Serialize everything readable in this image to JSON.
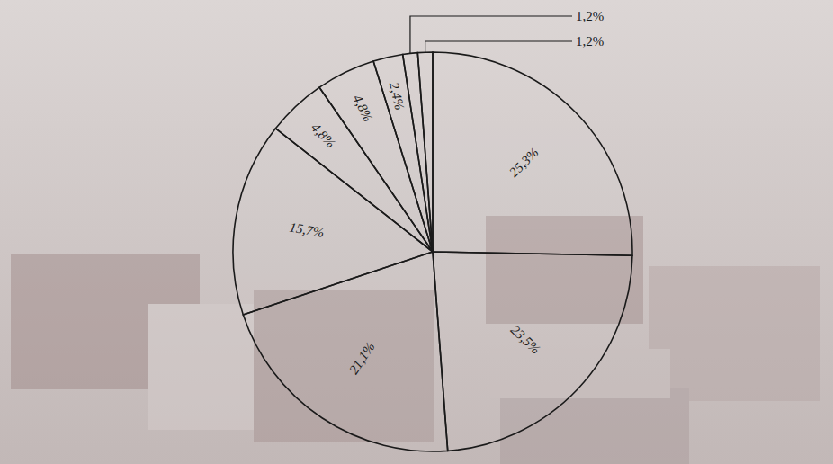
{
  "chart_data": {
    "type": "pie",
    "categories": [
      null,
      null,
      null,
      null,
      null,
      null,
      null,
      null,
      null
    ],
    "values": [
      25.3,
      23.5,
      21.1,
      15.7,
      4.8,
      4.8,
      2.4,
      1.2,
      1.2
    ],
    "value_labels": [
      "25,3%",
      "23,5%",
      "21,1%",
      "15,7%",
      "4,8%",
      "4,8%",
      "2,4%",
      "1,2%",
      "1,2%"
    ],
    "color": "#1a1a1a",
    "data_labels": true
  }
}
